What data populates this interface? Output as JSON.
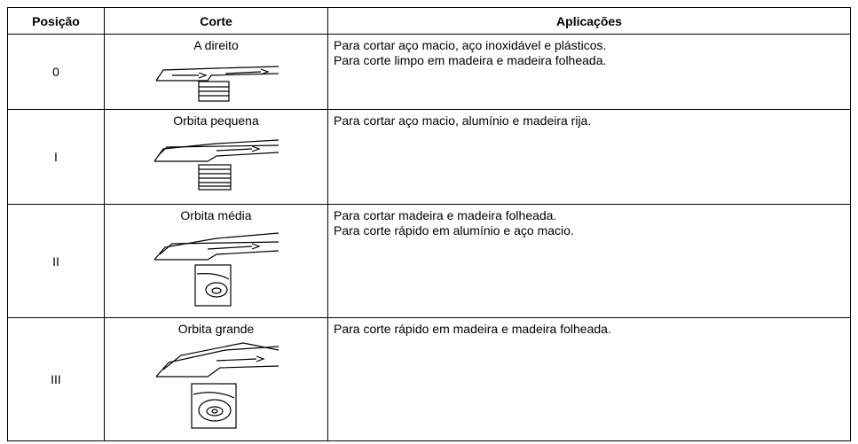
{
  "table": {
    "header": [
      "Posição",
      "Corte",
      "Aplicações"
    ],
    "rows": [
      {
        "position": "0",
        "cut": "A direito",
        "applications": [
          "Para cortar aço macio, aço inoxidável e plásticos.",
          "Para corte limpo em madeira e madeira folheada."
        ]
      },
      {
        "position": "I",
        "cut": "Orbita pequena",
        "applications": [
          "Para cortar aço macio, alumínio e madeira rija."
        ]
      },
      {
        "position": "II",
        "cut": "Orbita média",
        "applications": [
          "Para cortar madeira e madeira folheada.",
          "Para corte rápido em alumínio e aço macio."
        ]
      },
      {
        "position": "III",
        "cut": "Orbita grande",
        "applications": [
          "Para corte rápido em madeira e madeira folheada."
        ]
      }
    ]
  }
}
